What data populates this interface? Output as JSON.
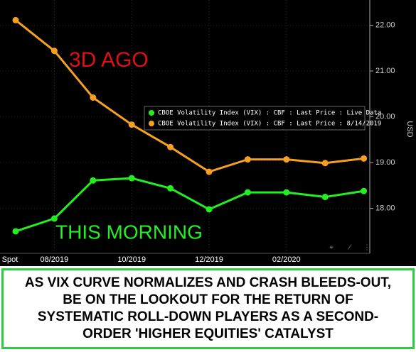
{
  "chart_data": {
    "type": "line",
    "categories": [
      "Spot",
      "08/2019",
      null,
      "10/2019",
      null,
      "12/2019",
      null,
      "02/2020",
      null,
      null
    ],
    "series": [
      {
        "name": "CBOE Volatility Index (VIX) : CBF : Last Price : Live Data",
        "color": "#22ee22",
        "values": [
          17.5,
          17.78,
          18.61,
          18.66,
          18.44,
          17.98,
          18.35,
          18.35,
          18.25,
          18.38
        ]
      },
      {
        "name": "CBOE Volatility Index (VIX) : CBF : Last Price : 8/14/2019",
        "color": "#f5a020",
        "values": [
          22.11,
          21.44,
          20.42,
          19.83,
          19.34,
          18.8,
          19.07,
          19.07,
          18.99,
          19.09
        ]
      }
    ],
    "ylim": [
      17.05,
      22.55
    ],
    "yticks": [
      {
        "value": 18,
        "label": "18.00"
      },
      {
        "value": 19,
        "label": "19.00"
      },
      {
        "value": 20,
        "label": "20.00"
      },
      {
        "value": 21,
        "label": "21.00"
      },
      {
        "value": 22,
        "label": "22.00"
      }
    ],
    "y_label": "USD",
    "grid": true,
    "annotations": [
      {
        "text": "3D AGO",
        "color": "#e01010"
      },
      {
        "text": "THIS MORNING",
        "color": "#22ee22"
      }
    ]
  },
  "caption": [
    "AS VIX CURVE NORMALIZES AND CRASH BLEEDS-OUT,",
    "BE ON THE LOOKOUT FOR THE RETURN OF",
    "SYSTEMATIC ROLL-DOWN PLAYERS AS A SECOND-",
    "ORDER 'HIGHER EQUITIES' CATALYST"
  ]
}
